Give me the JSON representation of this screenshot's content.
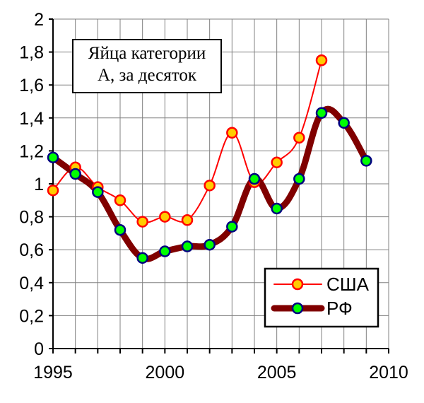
{
  "chart_data": {
    "type": "line",
    "title_lines": [
      "Яйца категории",
      "А, за десяток"
    ],
    "xlabel": "",
    "ylabel": "",
    "xlim": [
      1995,
      2010
    ],
    "ylim": [
      0,
      2
    ],
    "x_ticks": [
      1995,
      2000,
      2005,
      2010
    ],
    "x_tick_labels": [
      "1995",
      "2000",
      "2005",
      "2010"
    ],
    "y_ticks": [
      0,
      0.2,
      0.4,
      0.6,
      0.8,
      1,
      1.2,
      1.4,
      1.6,
      1.8,
      2
    ],
    "y_tick_labels": [
      "0",
      "0,2",
      "0,4",
      "0,6",
      "0,8",
      "1",
      "1,2",
      "1,4",
      "1,6",
      "1,8",
      "2"
    ],
    "grid": true,
    "legend_position": "bottom-right",
    "series": [
      {
        "name": "США",
        "color": "#ff0000",
        "marker_fill": "#ffcc00",
        "marker_edge": "#ff0000",
        "x": [
          1995,
          1996,
          1997,
          1998,
          1999,
          2000,
          2001,
          2002,
          2003,
          2004,
          2005,
          2006,
          2007
        ],
        "values": [
          0.96,
          1.1,
          0.98,
          0.9,
          0.77,
          0.8,
          0.78,
          0.99,
          1.31,
          1.01,
          1.13,
          1.28,
          1.75
        ]
      },
      {
        "name": "РФ",
        "color": "#800000",
        "marker_fill": "#00ff00",
        "marker_edge": "#000080",
        "x": [
          1995,
          1996,
          1997,
          1998,
          1999,
          2000,
          2001,
          2002,
          2003,
          2004,
          2005,
          2006,
          2007,
          2008,
          2009
        ],
        "values": [
          1.16,
          1.06,
          0.95,
          0.72,
          0.55,
          0.59,
          0.62,
          0.63,
          0.74,
          1.03,
          0.85,
          1.03,
          1.43,
          1.37,
          1.14
        ]
      }
    ]
  }
}
